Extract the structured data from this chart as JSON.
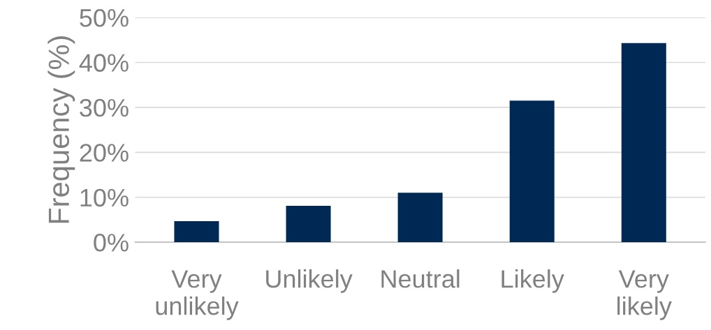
{
  "chart_data": {
    "type": "bar",
    "ylabel": "Frequency (%)",
    "categories": [
      "Very\nunlikely",
      "Unlikely",
      "Neutral",
      "Likely",
      "Very\nlikely"
    ],
    "values": [
      4.7,
      8.1,
      11.0,
      31.5,
      44.3
    ],
    "color": "#002855",
    "ylim": [
      0,
      50
    ],
    "yticks": [
      {
        "value": 0,
        "label": "0%"
      },
      {
        "value": 10,
        "label": "10%"
      },
      {
        "value": 20,
        "label": "20%"
      },
      {
        "value": 30,
        "label": "30%"
      },
      {
        "value": 40,
        "label": "40%"
      },
      {
        "value": 50,
        "label": "50%"
      }
    ],
    "grid": "y",
    "legend": false
  }
}
